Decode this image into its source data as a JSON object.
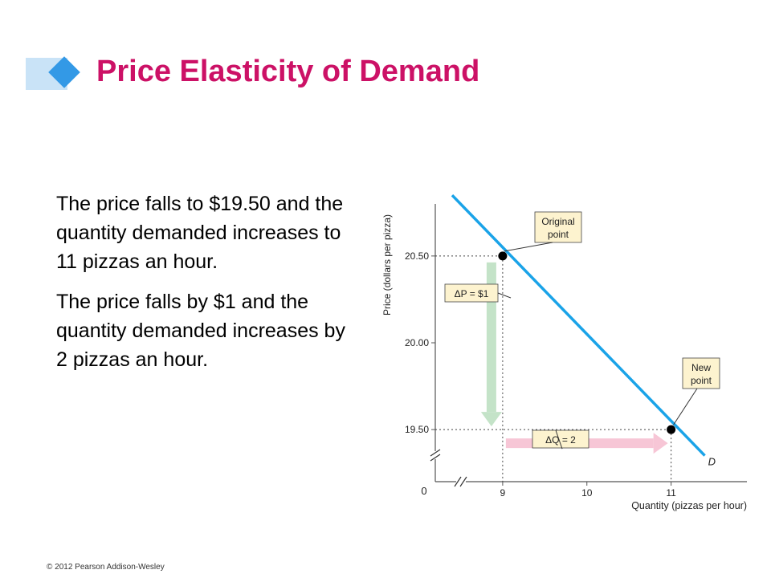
{
  "slide": {
    "title": "Price Elasticity of Demand",
    "paragraphs": [
      "The price falls to $19.50 and the quantity demanded increases to 11 pizzas an hour.",
      "The price falls by $1 and the quantity demanded increases by 2 pizzas an hour."
    ],
    "footer": "© 2012 Pearson Addison-Wesley"
  },
  "colors": {
    "title": "#cc1166",
    "accent_band": "#c9e3f7",
    "accent_diamond": "#3399e6",
    "demand_line": "#1aa3e8",
    "delta_p_arrow": "#c4e3c8",
    "delta_q_arrow": "#f7c6d6",
    "label_box_fill": "#fdf3cf"
  },
  "chart_data": {
    "type": "line",
    "xlabel": "Quantity (pizzas per hour)",
    "ylabel": "Price (dollars per pizza)",
    "origin_label": "0",
    "x_ticks": [
      9,
      10,
      11
    ],
    "y_ticks": [
      {
        "value": 19.5,
        "label": "19.50"
      },
      {
        "value": 20.0,
        "label": "20.00"
      },
      {
        "value": 20.5,
        "label": "20.50"
      }
    ],
    "xlim": [
      8.2,
      11.9
    ],
    "ylim": [
      19.2,
      20.8
    ],
    "grid": false,
    "axis_breaks": true,
    "series": [
      {
        "name": "D",
        "x": [
          8.4,
          11.4
        ],
        "y": [
          20.85,
          19.35
        ]
      }
    ],
    "points": [
      {
        "label": "Original point",
        "x": 9,
        "y": 20.5
      },
      {
        "label": "New point",
        "x": 11,
        "y": 19.5
      }
    ],
    "annotations": {
      "delta_p": {
        "label": "ΔP = $1",
        "value": 1
      },
      "delta_q": {
        "label": "ΔQ = 2",
        "value": 2
      }
    }
  }
}
